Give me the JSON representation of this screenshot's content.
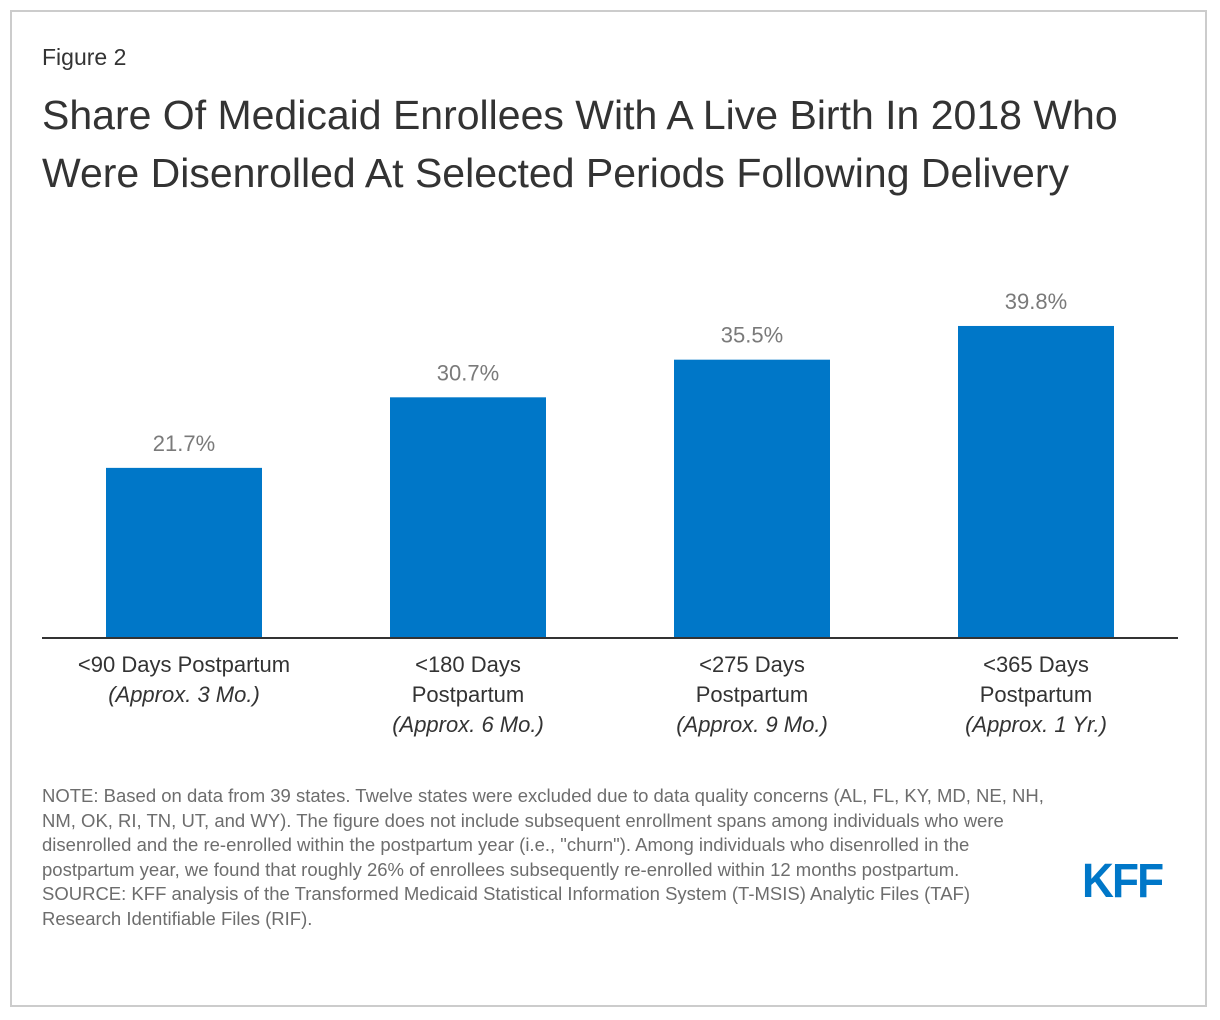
{
  "figure_label": "Figure 2",
  "title": "Share Of Medicaid Enrollees With A Live Birth In 2018 Who Were Disenrolled At Selected Periods Following Delivery",
  "chart_data": {
    "type": "bar",
    "title": "Share Of Medicaid Enrollees With A Live Birth In 2018 Who Were Disenrolled At Selected Periods Following Delivery",
    "categories": [
      {
        "main": "<90 Days Postpartum",
        "sub": "(Approx. 3 Mo.)"
      },
      {
        "main": "<180 Days Postpartum",
        "sub": "(Approx. 6 Mo.)"
      },
      {
        "main": "<275 Days Postpartum",
        "sub": "(Approx. 9 Mo.)"
      },
      {
        "main": "<365 Days Postpartum",
        "sub": "(Approx. 1 Yr.)"
      }
    ],
    "values": [
      21.7,
      30.7,
      35.5,
      39.8
    ],
    "data_labels": [
      "21.7%",
      "30.7%",
      "35.5%",
      "39.8%"
    ],
    "xlabel": "",
    "ylabel": "",
    "ylim": [
      0,
      45
    ],
    "grid": false,
    "legend": "none",
    "bar_color": "#0077c8"
  },
  "note": "NOTE: Based on data from 39 states. Twelve states were excluded due to data quality concerns (AL, FL, KY, MD, NE, NH, NM, OK, RI, TN, UT, and WY). The figure does not include subsequent enrollment spans among individuals who were disenrolled and the re-enrolled within the postpartum year (i.e., \"churn\"). Among individuals who disenrolled in the postpartum year, we found that roughly 26% of enrollees subsequently re-enrolled within 12 months postpartum.",
  "source": "SOURCE: KFF analysis of the Transformed Medicaid Statistical Information System (T-MSIS) Analytic Files (TAF) Research Identifiable Files (RIF).",
  "logo": "KFF"
}
